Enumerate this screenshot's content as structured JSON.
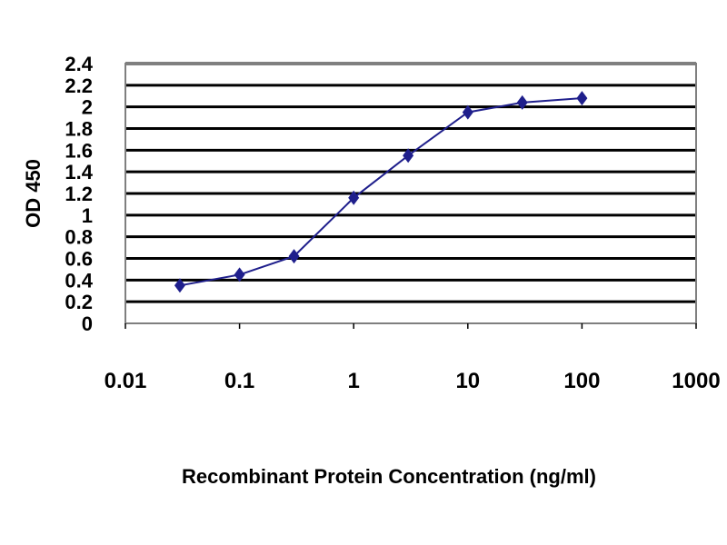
{
  "chart_data": {
    "type": "line",
    "title": "",
    "xlabel": "Recombinant Protein Concentration (ng/ml)",
    "ylabel": "OD 450",
    "x_scale": "log",
    "xlim": [
      0.01,
      1000
    ],
    "ylim": [
      0,
      2.4
    ],
    "x_tick_labels": [
      "0.01",
      "0.1",
      "1",
      "10",
      "100",
      "1000"
    ],
    "x_tick_values": [
      0.01,
      0.1,
      1,
      10,
      100,
      1000
    ],
    "y_tick_labels": [
      "0",
      "0.2",
      "0.4",
      "0.6",
      "0.8",
      "1",
      "1.2",
      "1.4",
      "1.6",
      "1.8",
      "2",
      "2.2",
      "2.4"
    ],
    "y_tick_values": [
      0,
      0.2,
      0.4,
      0.6,
      0.8,
      1,
      1.2,
      1.4,
      1.6,
      1.8,
      2,
      2.2,
      2.4
    ],
    "grid": "horizontal",
    "plot_background": "#ffffff",
    "grid_color": "#000000",
    "series": [
      {
        "color": "#1f1f8c",
        "marker": "diamond",
        "x": [
          0.03,
          0.1,
          0.3,
          1,
          3,
          10,
          30,
          100
        ],
        "y": [
          0.35,
          0.45,
          0.62,
          1.16,
          1.55,
          1.95,
          2.04,
          2.08
        ]
      }
    ]
  }
}
